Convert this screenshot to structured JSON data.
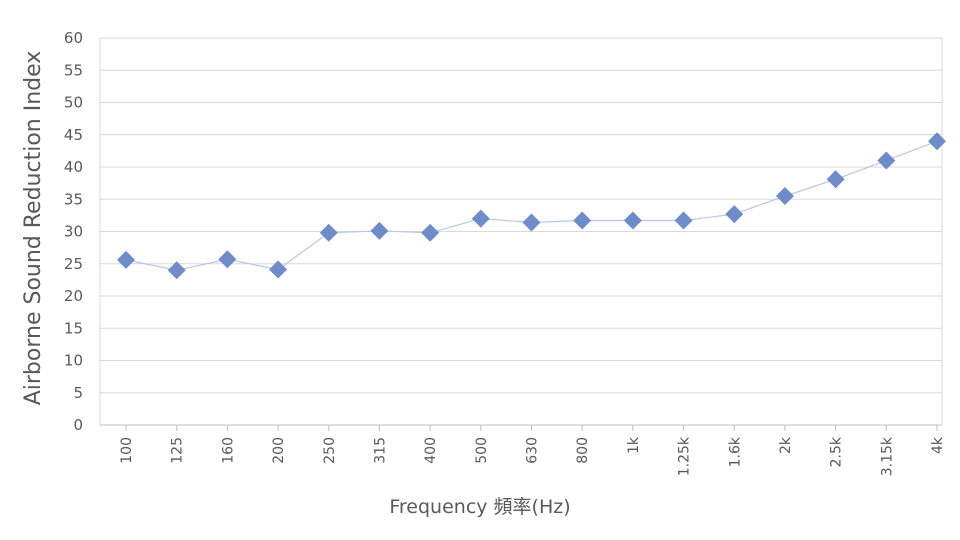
{
  "chart_data": {
    "type": "line",
    "title": "",
    "xlabel": "Frequency 頻率(Hz)",
    "ylabel": "Airborne Sound Reduction Index",
    "categories": [
      "100",
      "125",
      "160",
      "200",
      "250",
      "315",
      "400",
      "500",
      "630",
      "800",
      "1k",
      "1.25k",
      "1.6k",
      "2k",
      "2.5k",
      "3.15k",
      "4k"
    ],
    "series": [
      {
        "name": "Airborne Sound Reduction Index",
        "values": [
          25.6,
          24.0,
          25.7,
          24.1,
          29.8,
          30.1,
          29.8,
          32.0,
          31.4,
          31.7,
          31.7,
          31.7,
          32.7,
          35.5,
          38.1,
          41.0,
          44.0
        ]
      }
    ],
    "ylim": [
      0,
      60
    ],
    "yticks": [
      "0",
      "5",
      "10",
      "15",
      "20",
      "25",
      "30",
      "35",
      "40",
      "45",
      "50",
      "55",
      "60"
    ],
    "grid": true,
    "legend": "none",
    "colors": {
      "marker": "#6f8cc9",
      "line": "#b9c6e6",
      "grid": "#d9d9d9",
      "axis": "#bfbfbf"
    }
  }
}
